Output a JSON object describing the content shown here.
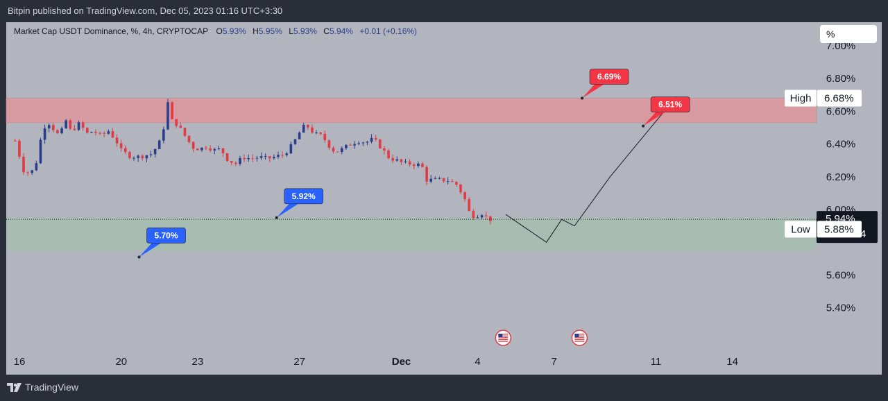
{
  "header": {
    "published_text": "Bitpin published on TradingView.com, Dec 05, 2023 01:16 UTC+3:30"
  },
  "legend": {
    "symbol": "Market Cap USDT Dominance, %, 4h, CRYPTOCAP",
    "open_label": "O",
    "open_value": "5.93%",
    "high_label": "H",
    "high_value": "5.95%",
    "low_label": "L",
    "low_value": "5.93%",
    "close_label": "C",
    "close_value": "5.94%",
    "change_value": "+0.01 (+0.16%)"
  },
  "unit_box": {
    "label": "%"
  },
  "footer": {
    "brand": "TradingView"
  },
  "colors": {
    "up": "#2a3c8c",
    "down": "#e03a45",
    "resistance_zone": "#d79aa0",
    "support_zone": "#a7bdb2",
    "callout_red": "#f23645",
    "callout_blue": "#2962ff"
  },
  "chart_data": {
    "type": "candlestick",
    "title": "Market Cap USDT Dominance, %, 4h, CRYPTOCAP",
    "ylim": [
      5.3,
      7.05
    ],
    "y_ticks": [
      "7.00%",
      "6.80%",
      "6.60%",
      "6.40%",
      "6.20%",
      "6.00%",
      "5.60%",
      "5.40%"
    ],
    "y_tick_values": [
      7.0,
      6.8,
      6.6,
      6.4,
      6.2,
      6.0,
      5.6,
      5.4
    ],
    "x_ticks": [
      {
        "label": "16",
        "day": 16
      },
      {
        "label": "20",
        "day": 20
      },
      {
        "label": "23",
        "day": 23
      },
      {
        "label": "27",
        "day": 27
      },
      {
        "label": "Dec",
        "day": 31
      },
      {
        "label": "4",
        "day": 34
      },
      {
        "label": "7",
        "day": 37
      },
      {
        "label": "11",
        "day": 41
      },
      {
        "label": "14",
        "day": 44
      }
    ],
    "x_range": [
      15.8,
      47.9
    ],
    "price_series": [
      [
        15.83,
        6.42
      ],
      [
        16.2,
        6.22
      ],
      [
        16.6,
        6.24
      ],
      [
        16.9,
        6.48
      ],
      [
        17.1,
        6.54
      ],
      [
        17.3,
        6.5
      ],
      [
        17.6,
        6.44
      ],
      [
        17.8,
        6.57
      ],
      [
        17.9,
        6.48
      ],
      [
        18.1,
        6.49
      ],
      [
        18.4,
        6.53
      ],
      [
        18.6,
        6.46
      ],
      [
        18.9,
        6.48
      ],
      [
        19.2,
        6.45
      ],
      [
        19.5,
        6.48
      ],
      [
        19.8,
        6.42
      ],
      [
        20.0,
        6.36
      ],
      [
        20.3,
        6.33
      ],
      [
        20.6,
        6.32
      ],
      [
        20.9,
        6.33
      ],
      [
        21.2,
        6.34
      ],
      [
        21.5,
        6.41
      ],
      [
        21.7,
        6.52
      ],
      [
        21.8,
        6.67
      ],
      [
        22.0,
        6.54
      ],
      [
        22.2,
        6.52
      ],
      [
        22.5,
        6.45
      ],
      [
        22.8,
        6.38
      ],
      [
        23.1,
        6.37
      ],
      [
        23.4,
        6.39
      ],
      [
        23.6,
        6.36
      ],
      [
        23.9,
        6.37
      ],
      [
        24.2,
        6.3
      ],
      [
        24.5,
        6.28
      ],
      [
        24.8,
        6.32
      ],
      [
        25.1,
        6.31
      ],
      [
        25.4,
        6.32
      ],
      [
        25.7,
        6.31
      ],
      [
        26.0,
        6.32
      ],
      [
        26.3,
        6.33
      ],
      [
        26.6,
        6.37
      ],
      [
        26.9,
        6.44
      ],
      [
        27.1,
        6.5
      ],
      [
        27.3,
        6.51
      ],
      [
        27.6,
        6.46
      ],
      [
        27.9,
        6.45
      ],
      [
        28.1,
        6.4
      ],
      [
        28.4,
        6.35
      ],
      [
        28.7,
        6.37
      ],
      [
        29.0,
        6.4
      ],
      [
        29.3,
        6.42
      ],
      [
        29.6,
        6.41
      ],
      [
        29.9,
        6.43
      ],
      [
        30.2,
        6.38
      ],
      [
        30.5,
        6.32
      ],
      [
        30.8,
        6.3
      ],
      [
        31.1,
        6.28
      ],
      [
        31.4,
        6.28
      ],
      [
        31.8,
        6.27
      ],
      [
        32.0,
        6.18
      ],
      [
        32.4,
        6.18
      ],
      [
        32.8,
        6.18
      ],
      [
        33.2,
        6.15
      ],
      [
        33.5,
        6.06
      ],
      [
        33.7,
        5.97
      ],
      [
        33.9,
        5.96
      ],
      [
        34.2,
        5.98
      ],
      [
        34.4,
        5.94
      ],
      [
        34.6,
        5.94
      ]
    ],
    "resistance_zone": [
      6.53,
      6.68
    ],
    "support_zone": [
      5.75,
      5.95
    ],
    "current_price": 5.94,
    "projection_path": [
      [
        35.1,
        5.97
      ],
      [
        36.7,
        5.8
      ],
      [
        37.3,
        5.94
      ],
      [
        37.8,
        5.9
      ],
      [
        39.2,
        6.2
      ],
      [
        41.8,
        6.69
      ]
    ],
    "callouts": [
      {
        "label": "6.69%",
        "color": "red",
        "anchor": [
          38.1,
          6.68
        ]
      },
      {
        "label": "6.51%",
        "color": "red",
        "anchor": [
          40.5,
          6.51
        ]
      },
      {
        "label": "5.92%",
        "color": "blue",
        "anchor": [
          26.1,
          5.95
        ]
      },
      {
        "label": "5.70%",
        "color": "blue",
        "anchor": [
          20.7,
          5.71
        ]
      }
    ],
    "price_labels": [
      {
        "name": "High",
        "value": "6.68%",
        "price": 6.68
      },
      {
        "name": "Last",
        "value": "5.94%",
        "price": 5.94,
        "countdown": "02:13:24"
      },
      {
        "name": "Low",
        "value": "5.88%",
        "price": 5.88
      }
    ],
    "event_markers": [
      {
        "day": 35.0
      },
      {
        "day": 38.0
      }
    ]
  }
}
